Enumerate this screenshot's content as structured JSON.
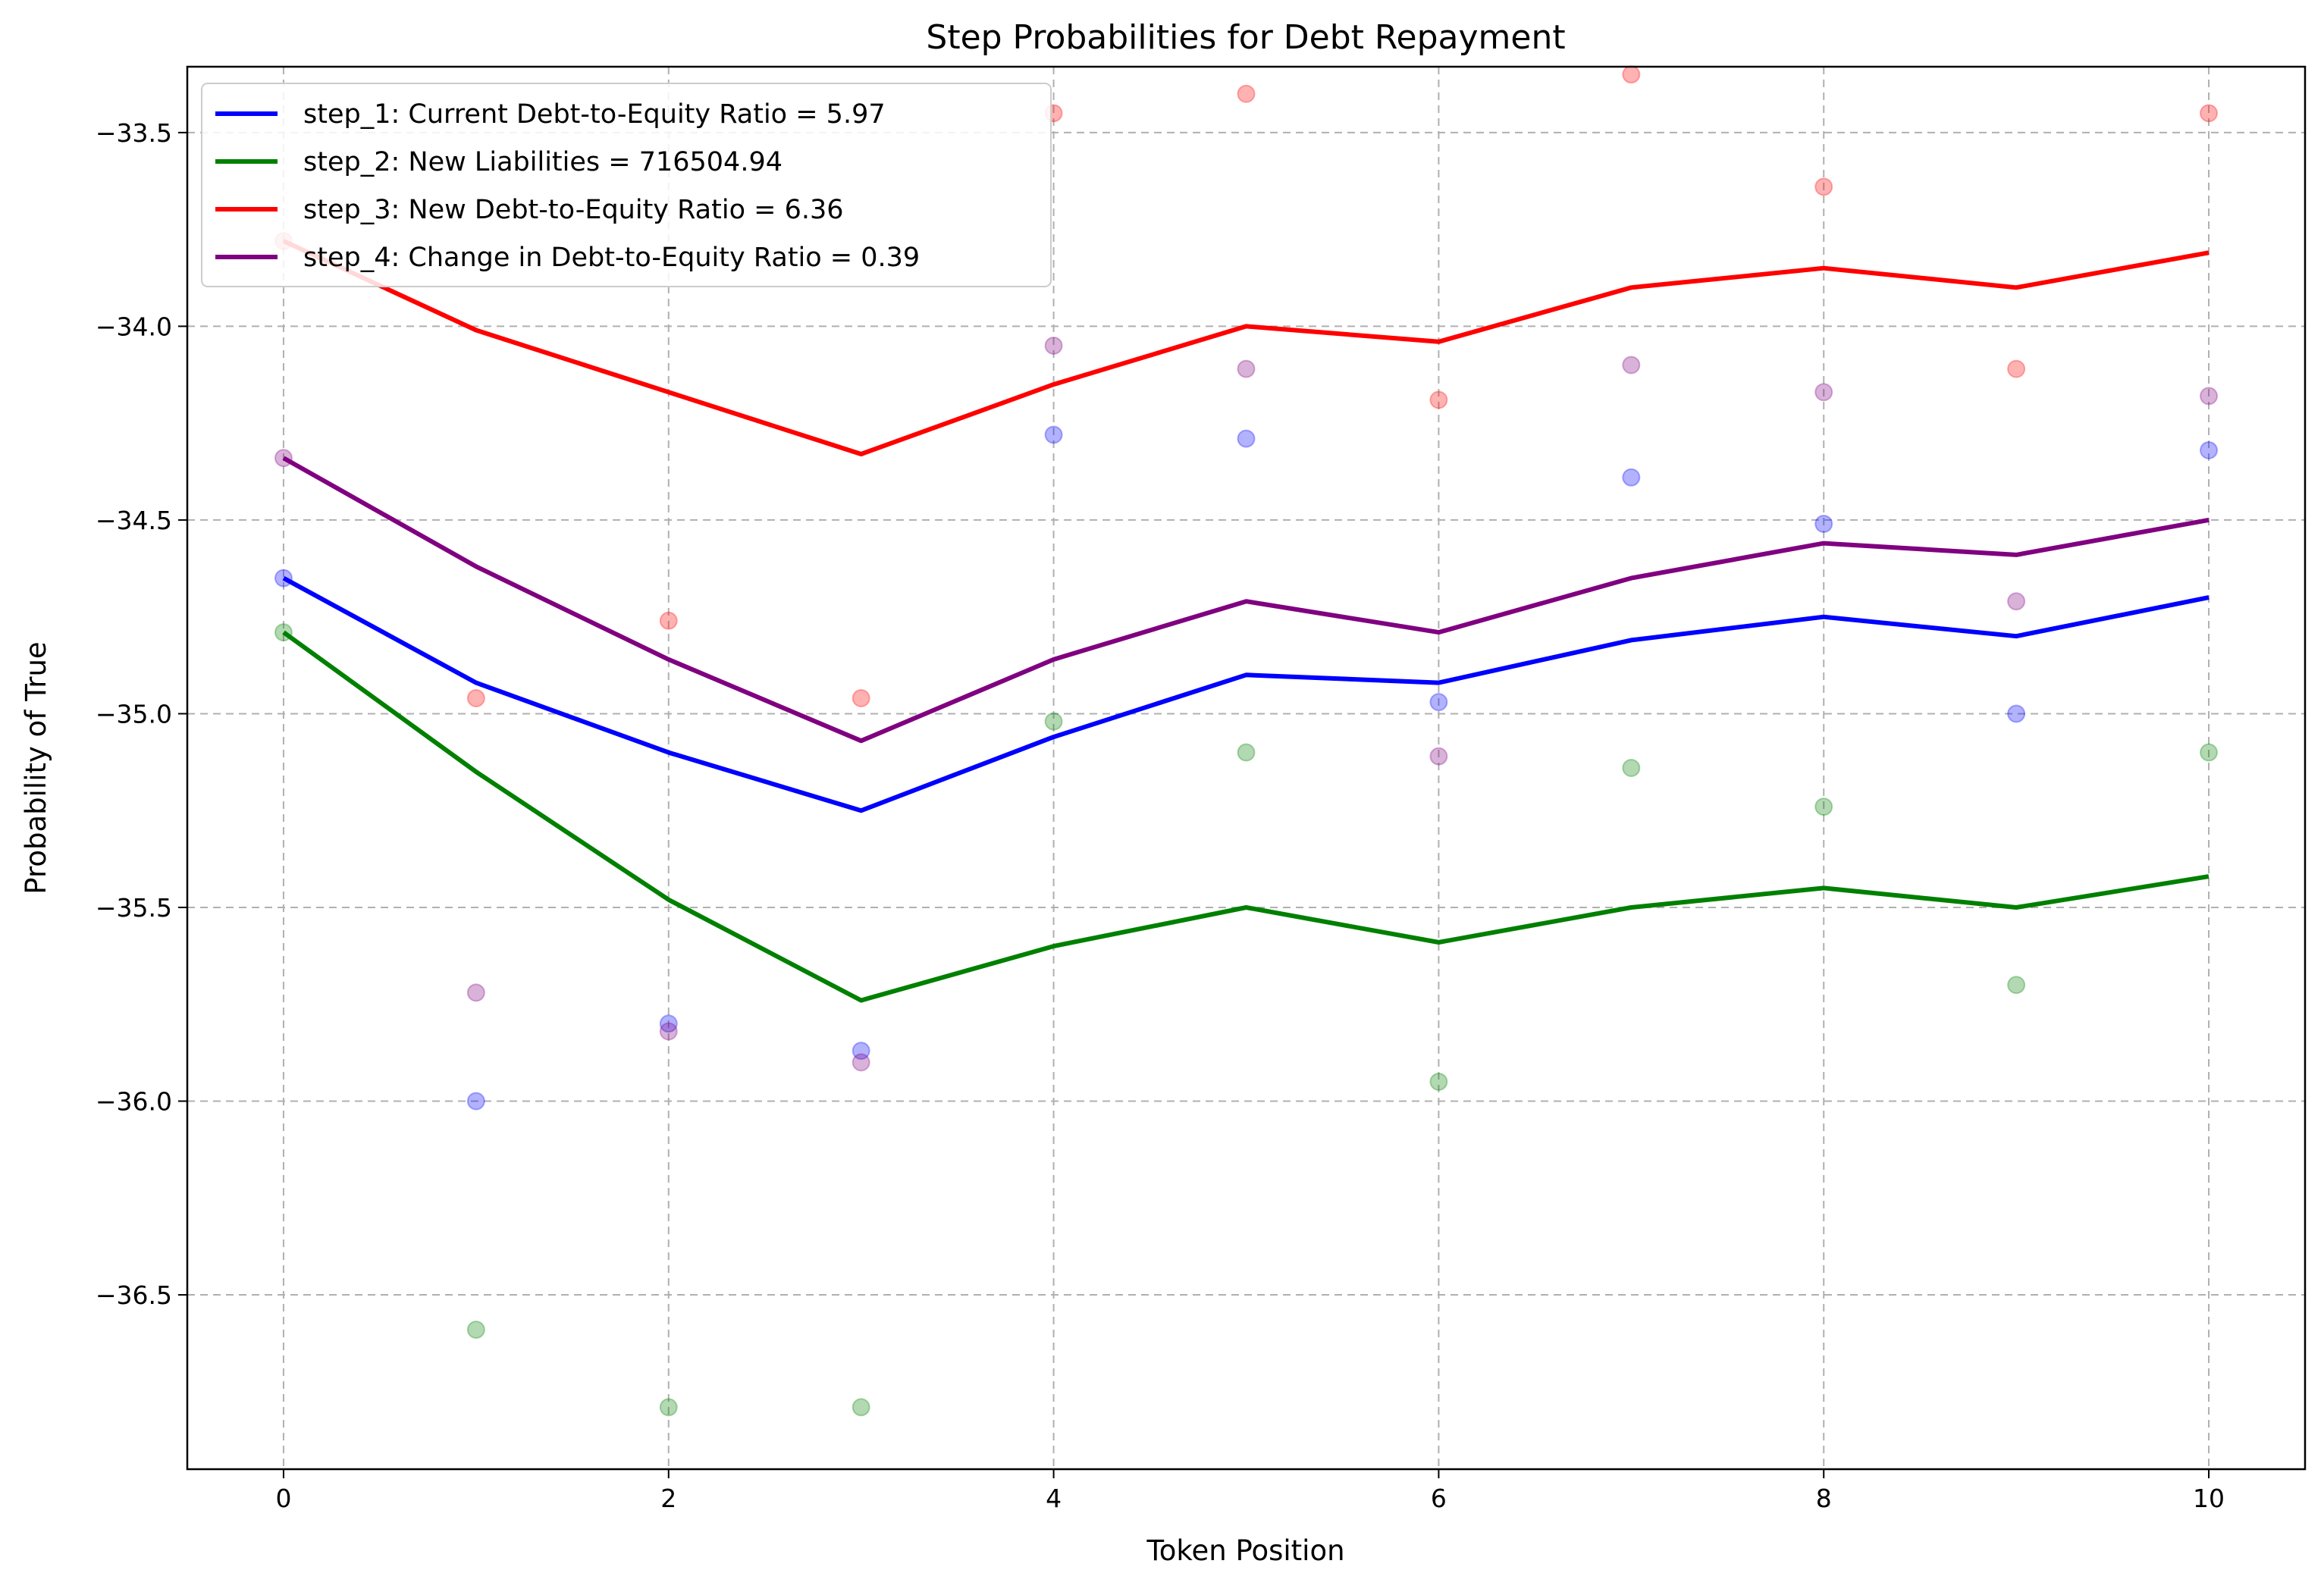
{
  "chart_data": {
    "type": "line",
    "title": "Step Probabilities for Debt Repayment",
    "xlabel": "Token Position",
    "ylabel": "Probability of True",
    "xlim": [
      -0.5,
      10.5
    ],
    "ylim": [
      -36.95,
      -33.33
    ],
    "x_ticks": [
      0,
      2,
      4,
      6,
      8,
      10
    ],
    "y_ticks": [
      -36.5,
      -36.0,
      -35.5,
      -35.0,
      -34.5,
      -34.0,
      -33.5
    ],
    "grid": true,
    "legend_position": "top-left",
    "x": [
      0,
      1,
      2,
      3,
      4,
      5,
      6,
      7,
      8,
      9,
      10
    ],
    "series": [
      {
        "name": "step_1: Current Debt-to-Equity Ratio = 5.97",
        "color": "#0000ff",
        "values": [
          -34.65,
          -34.92,
          -35.1,
          -35.25,
          -35.06,
          -34.9,
          -34.92,
          -34.81,
          -34.75,
          -34.8,
          -34.7
        ],
        "points": [
          -34.65,
          -36.0,
          -35.8,
          -35.87,
          -34.28,
          -34.29,
          -34.97,
          -34.39,
          -34.51,
          -35.0,
          -34.32
        ]
      },
      {
        "name": "step_2: New Liabilities = 716504.94",
        "color": "#008000",
        "values": [
          -34.79,
          -35.15,
          -35.48,
          -35.74,
          -35.6,
          -35.5,
          -35.59,
          -35.5,
          -35.45,
          -35.5,
          -35.42
        ],
        "points": [
          -34.79,
          -36.59,
          -36.79,
          -36.79,
          -35.02,
          -35.1,
          -35.95,
          -35.14,
          -35.24,
          -35.7,
          -35.1
        ]
      },
      {
        "name": "step_3: New Debt-to-Equity Ratio = 6.36",
        "color": "#ff0000",
        "values": [
          -33.78,
          -34.01,
          -34.17,
          -34.33,
          -34.15,
          -34.0,
          -34.04,
          -33.9,
          -33.85,
          -33.9,
          -33.81
        ],
        "points": [
          -33.78,
          -34.96,
          -34.76,
          -34.96,
          -33.45,
          -33.4,
          -34.19,
          -33.35,
          -33.64,
          -34.11,
          -33.45
        ]
      },
      {
        "name": "step_4: Change in Debt-to-Equity Ratio = 0.39",
        "color": "#800080",
        "values": [
          -34.34,
          -34.62,
          -34.86,
          -35.07,
          -34.86,
          -34.71,
          -34.79,
          -34.65,
          -34.56,
          -34.59,
          -34.5
        ],
        "points": [
          -34.34,
          -35.72,
          -35.82,
          -35.9,
          -34.05,
          -34.11,
          -35.11,
          -34.1,
          -34.17,
          -34.71,
          -34.18
        ]
      }
    ]
  }
}
